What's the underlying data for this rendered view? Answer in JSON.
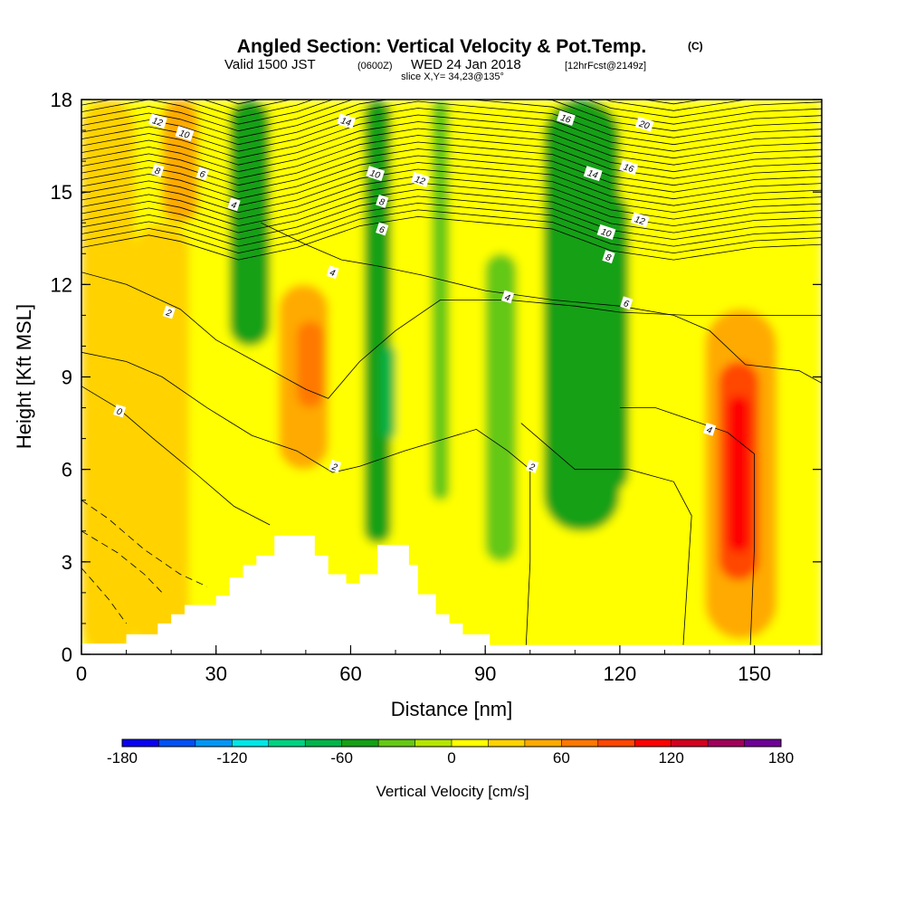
{
  "title": {
    "main": "Angled Section: Vertical Velocity & Pot.Temp.",
    "main_suffix": "(C)",
    "valid_prefix": "Valid 1500 JST",
    "valid_utc": "(0600Z)",
    "valid_date": "WED 24 Jan 2018",
    "forecast": "[12hrFcst@2149z]",
    "slice": "slice X,Y= 34,23@135°"
  },
  "chart_data": {
    "type": "heatmap",
    "xlabel": "Distance [nm]",
    "ylabel": "Height [Kft MSL]",
    "xlim": [
      0,
      165
    ],
    "ylim": [
      0,
      18
    ],
    "xticks": [
      "0",
      "30",
      "60",
      "90",
      "120",
      "150"
    ],
    "xtick_values": [
      0,
      30,
      60,
      90,
      120,
      150
    ],
    "yticks": [
      "0",
      "3",
      "6",
      "9",
      "12",
      "15",
      "18"
    ],
    "ytick_values": [
      0,
      3,
      6,
      9,
      12,
      15,
      18
    ],
    "colorbar": {
      "label": "Vertical Velocity [cm/s]",
      "range": [
        -180,
        180
      ],
      "tick_labels": [
        "-180",
        "-120",
        "-60",
        "0",
        "60",
        "120",
        "180"
      ],
      "tick_values": [
        -180,
        -120,
        -60,
        0,
        60,
        120,
        180
      ],
      "colors": [
        "#0a00f0",
        "#0050f5",
        "#0096f5",
        "#00e6e6",
        "#00d282",
        "#00b44b",
        "#14a014",
        "#64c814",
        "#b4e600",
        "#ffff00",
        "#ffd200",
        "#ffaa00",
        "#ff7800",
        "#ff4600",
        "#ff0000",
        "#d2001e",
        "#a0005a",
        "#6e0096"
      ]
    },
    "vertical_velocity_columns": [
      {
        "x": [
          0,
          165
        ],
        "y": [
          0,
          18
        ],
        "value": 10
      },
      {
        "x": [
          0,
          12
        ],
        "y": [
          0,
          18
        ],
        "value": 30
      },
      {
        "x": [
          12,
          24
        ],
        "y": [
          0,
          14
        ],
        "value": 30
      },
      {
        "x": [
          18,
          26
        ],
        "y": [
          14,
          18
        ],
        "value": 50
      },
      {
        "x": [
          33,
          42
        ],
        "y": [
          10,
          18
        ],
        "value": -50
      },
      {
        "x": [
          44,
          55
        ],
        "y": [
          6,
          12
        ],
        "value": 50
      },
      {
        "x": [
          48,
          54
        ],
        "y": [
          8,
          10.8
        ],
        "value": 70
      },
      {
        "x": [
          63,
          69
        ],
        "y": [
          3.6,
          18
        ],
        "value": -60
      },
      {
        "x": [
          67,
          70
        ],
        "y": [
          7,
          10
        ],
        "value": -80
      },
      {
        "x": [
          78,
          82
        ],
        "y": [
          5,
          18
        ],
        "value": -30
      },
      {
        "x": [
          90,
          97
        ],
        "y": [
          3,
          13
        ],
        "value": -30
      },
      {
        "x": [
          103,
          120
        ],
        "y": [
          4,
          18
        ],
        "value": -50
      },
      {
        "x": [
          112,
          122
        ],
        "y": [
          5.2,
          15
        ],
        "value": -60
      },
      {
        "x": [
          139,
          155
        ],
        "y": [
          0.5,
          11.2
        ],
        "value": 50
      },
      {
        "x": [
          142,
          151
        ],
        "y": [
          2.4,
          9.5
        ],
        "value": 90
      },
      {
        "x": [
          144,
          149
        ],
        "y": [
          3.3,
          8.4
        ],
        "value": 115
      }
    ],
    "potential_temperature_contour_labels": [
      {
        "text": "12",
        "x": 17,
        "y": 17.3
      },
      {
        "text": "10",
        "x": 23,
        "y": 16.9
      },
      {
        "text": "8",
        "x": 17,
        "y": 15.7
      },
      {
        "text": "6",
        "x": 27,
        "y": 15.6
      },
      {
        "text": "4",
        "x": 34,
        "y": 14.6
      },
      {
        "text": "14",
        "x": 59,
        "y": 17.3
      },
      {
        "text": "10",
        "x": 65.5,
        "y": 15.6
      },
      {
        "text": "12",
        "x": 75.5,
        "y": 15.4
      },
      {
        "text": "8",
        "x": 67,
        "y": 14.7
      },
      {
        "text": "6",
        "x": 67,
        "y": 13.8
      },
      {
        "text": "4",
        "x": 56,
        "y": 12.4
      },
      {
        "text": "16",
        "x": 108,
        "y": 17.4
      },
      {
        "text": "20",
        "x": 125.5,
        "y": 17.2
      },
      {
        "text": "14",
        "x": 114,
        "y": 15.6
      },
      {
        "text": "16",
        "x": 122,
        "y": 15.8
      },
      {
        "text": "12",
        "x": 124.5,
        "y": 14.1
      },
      {
        "text": "10",
        "x": 117,
        "y": 13.7
      },
      {
        "text": "8",
        "x": 117.5,
        "y": 12.9
      },
      {
        "text": "4",
        "x": 95,
        "y": 11.6
      },
      {
        "text": "6",
        "x": 121.5,
        "y": 11.4
      },
      {
        "text": "2",
        "x": 19.5,
        "y": 11.1
      },
      {
        "text": "0",
        "x": 8.5,
        "y": 7.9
      },
      {
        "text": "2",
        "x": 56.5,
        "y": 6.1
      },
      {
        "text": "2",
        "x": 100.5,
        "y": 6.1
      },
      {
        "text": "4",
        "x": 140,
        "y": 7.3
      }
    ]
  }
}
